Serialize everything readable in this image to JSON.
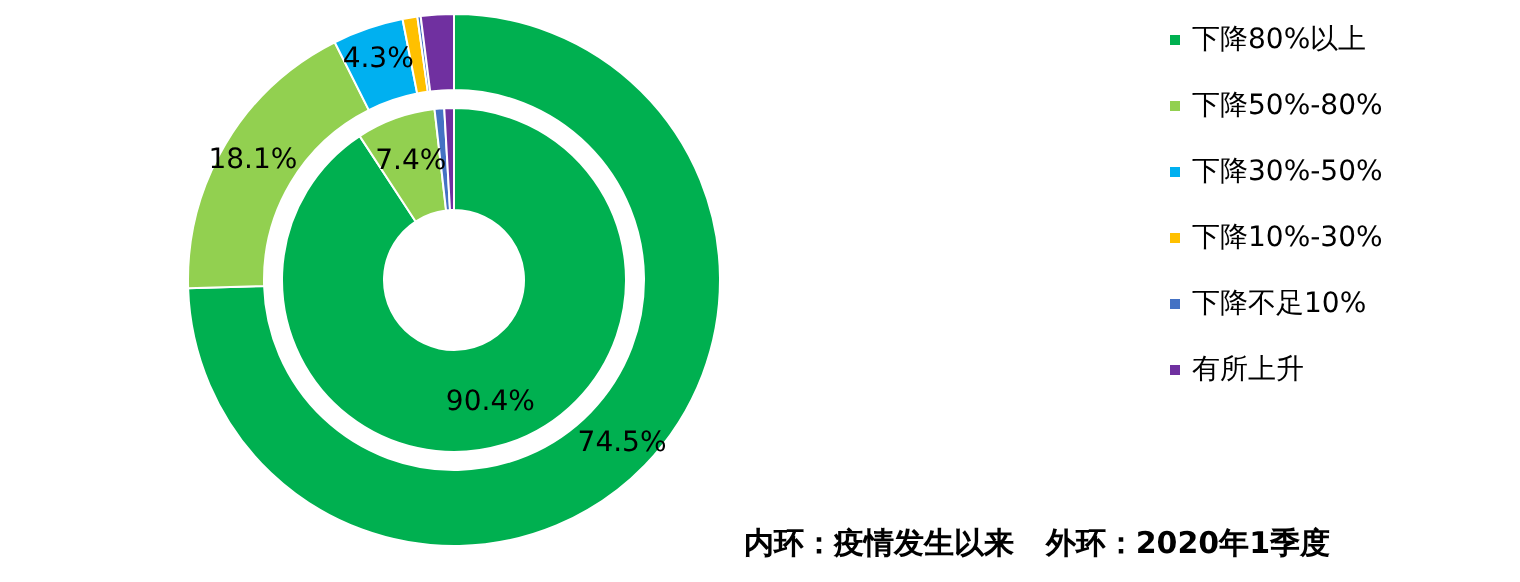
{
  "chart_data": [
    {
      "type": "donut",
      "categories": [
        "下降80%以上",
        "下降50%-80%",
        "下降30%-50%",
        "下降10%-30%",
        "下降不足10%",
        "有所上升"
      ],
      "colors": [
        "#00b050",
        "#92d050",
        "#00b0f0",
        "#ffc000",
        "#4472c4",
        "#7030a0"
      ],
      "values": [
        74.5,
        18.1,
        4.3,
        0.9,
        0.2,
        2.0
      ],
      "value_labels": [
        "74.5%",
        "18.1%",
        "4.3%",
        null,
        null,
        null
      ],
      "legend": "right",
      "annotations": [
        "内环：疫情发生以来   外环：2020年1季度"
      ]
    },
    {
      "type": "donut",
      "categories": [
        null,
        null,
        null,
        null,
        null,
        null
      ],
      "colors": [
        "#00b050",
        "#92d050",
        "#00b0f0",
        "#ffc000",
        "#4472c4",
        "#7030a0"
      ],
      "values": [
        90.4,
        7.4,
        null,
        null,
        0.9,
        0.9
      ],
      "value_labels": [
        "90.4%",
        "7.4%",
        null,
        null,
        null,
        null
      ]
    }
  ]
}
